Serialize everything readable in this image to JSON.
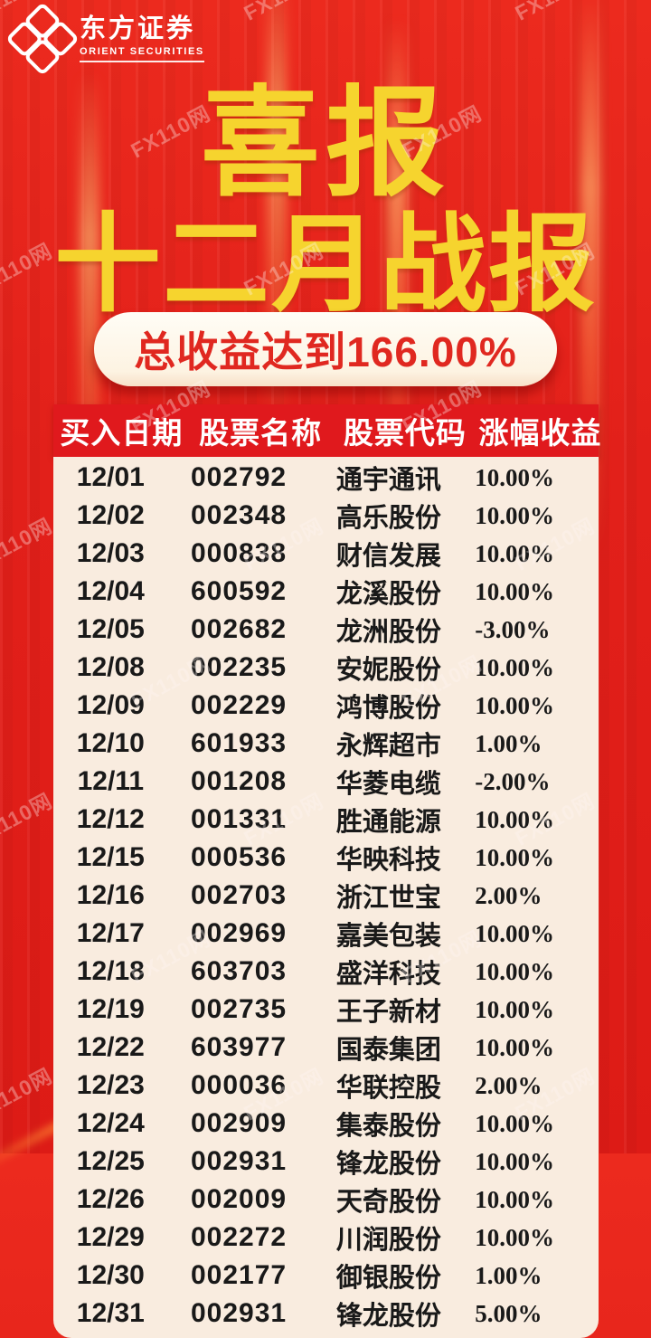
{
  "brand": {
    "name_cn": "东方证券",
    "name_en": "ORIENT SECURITIES"
  },
  "titles": {
    "main": "喜报",
    "sub": "十二月战报"
  },
  "banner": {
    "text": "总收益达到166.00%"
  },
  "watermark": {
    "text": "FX110网"
  },
  "colors": {
    "background_red": "#e2201a",
    "header_bar_red": "#e0191d",
    "title_yellow": "#f6d42e",
    "banner_text_red": "#e02820",
    "table_background": "#f9ecdf",
    "table_text": "#191919"
  },
  "table": {
    "headers": [
      "买入日期",
      "股票名称",
      "股票代码",
      "涨幅收益"
    ],
    "rows": [
      [
        "12/01",
        "002792",
        "通宇通讯",
        "10.00%"
      ],
      [
        "12/02",
        "002348",
        "高乐股份",
        "10.00%"
      ],
      [
        "12/03",
        "000838",
        "财信发展",
        "10.00%"
      ],
      [
        "12/04",
        "600592",
        "龙溪股份",
        "10.00%"
      ],
      [
        "12/05",
        "002682",
        "龙洲股份",
        "-3.00%"
      ],
      [
        "12/08",
        "002235",
        "安妮股份",
        "10.00%"
      ],
      [
        "12/09",
        "002229",
        "鸿博股份",
        "10.00%"
      ],
      [
        "12/10",
        "601933",
        "永辉超市",
        "1.00%"
      ],
      [
        "12/11",
        "001208",
        "华菱电缆",
        "-2.00%"
      ],
      [
        "12/12",
        "001331",
        "胜通能源",
        "10.00%"
      ],
      [
        "12/15",
        "000536",
        "华映科技",
        "10.00%"
      ],
      [
        "12/16",
        "002703",
        "浙江世宝",
        "2.00%"
      ],
      [
        "12/17",
        "002969",
        "嘉美包装",
        "10.00%"
      ],
      [
        "12/18",
        "603703",
        "盛洋科技",
        "10.00%"
      ],
      [
        "12/19",
        "002735",
        "王子新材",
        "10.00%"
      ],
      [
        "12/22",
        "603977",
        "国泰集团",
        "10.00%"
      ],
      [
        "12/23",
        "000036",
        "华联控股",
        "2.00%"
      ],
      [
        "12/24",
        "002909",
        "集泰股份",
        "10.00%"
      ],
      [
        "12/25",
        "002931",
        "锋龙股份",
        "10.00%"
      ],
      [
        "12/26",
        "002009",
        "天奇股份",
        "10.00%"
      ],
      [
        "12/29",
        "002272",
        "川润股份",
        "10.00%"
      ],
      [
        "12/30",
        "002177",
        "御银股份",
        "1.00%"
      ],
      [
        "12/31",
        "002931",
        "锋龙股份",
        "5.00%"
      ]
    ]
  }
}
